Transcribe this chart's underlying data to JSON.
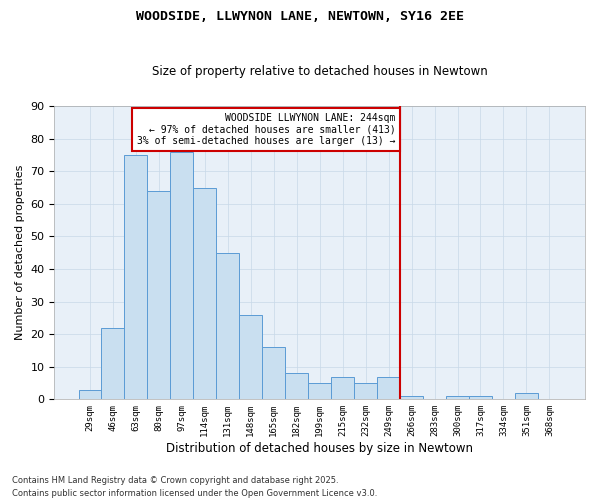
{
  "title": "WOODSIDE, LLWYNON LANE, NEWTOWN, SY16 2EE",
  "subtitle": "Size of property relative to detached houses in Newtown",
  "xlabel": "Distribution of detached houses by size in Newtown",
  "ylabel": "Number of detached properties",
  "categories": [
    "29sqm",
    "46sqm",
    "63sqm",
    "80sqm",
    "97sqm",
    "114sqm",
    "131sqm",
    "148sqm",
    "165sqm",
    "182sqm",
    "199sqm",
    "215sqm",
    "232sqm",
    "249sqm",
    "266sqm",
    "283sqm",
    "300sqm",
    "317sqm",
    "334sqm",
    "351sqm",
    "368sqm"
  ],
  "values": [
    3,
    22,
    75,
    64,
    76,
    65,
    45,
    26,
    16,
    8,
    5,
    7,
    5,
    7,
    1,
    0,
    1,
    1,
    0,
    2,
    0
  ],
  "bar_color": "#c9dff0",
  "bar_edge_color": "#5b9bd5",
  "vline_x_index": 13.5,
  "vline_color": "#cc0000",
  "annotation_text": "WOODSIDE LLWYNON LANE: 244sqm\n← 97% of detached houses are smaller (413)\n3% of semi-detached houses are larger (13) →",
  "annotation_box_color": "#ffffff",
  "annotation_border_color": "#cc0000",
  "ylim": [
    0,
    90
  ],
  "yticks": [
    0,
    10,
    20,
    30,
    40,
    50,
    60,
    70,
    80,
    90
  ],
  "grid_color": "#c8d8e8",
  "background_color": "#e8f0f8",
  "footnote1": "Contains HM Land Registry data © Crown copyright and database right 2025.",
  "footnote2": "Contains public sector information licensed under the Open Government Licence v3.0."
}
